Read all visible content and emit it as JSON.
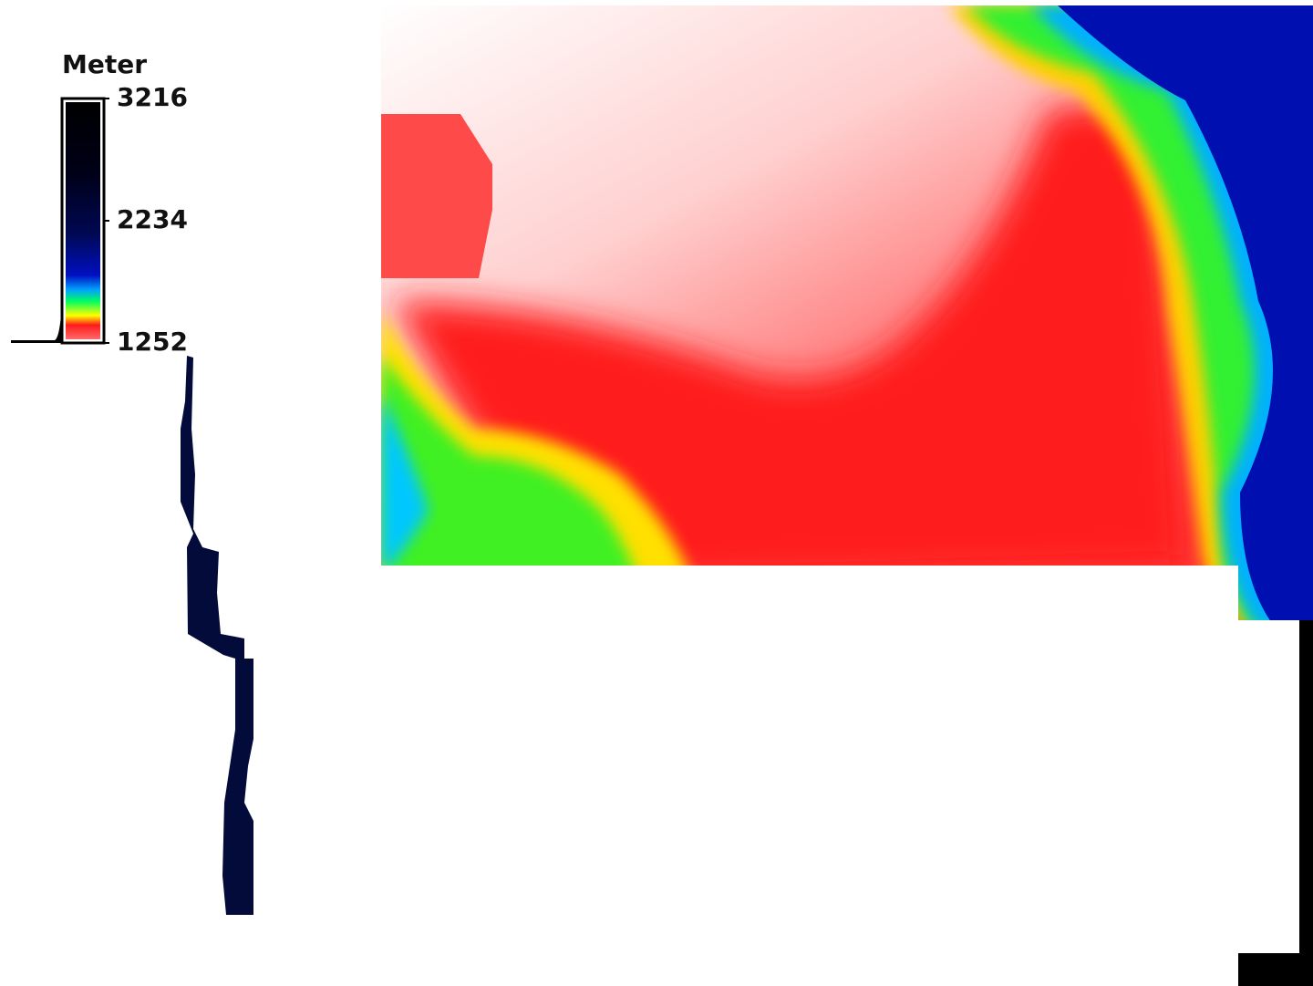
{
  "legend": {
    "title": "Meter",
    "ticks": [
      3216,
      2234,
      1252
    ]
  }
}
